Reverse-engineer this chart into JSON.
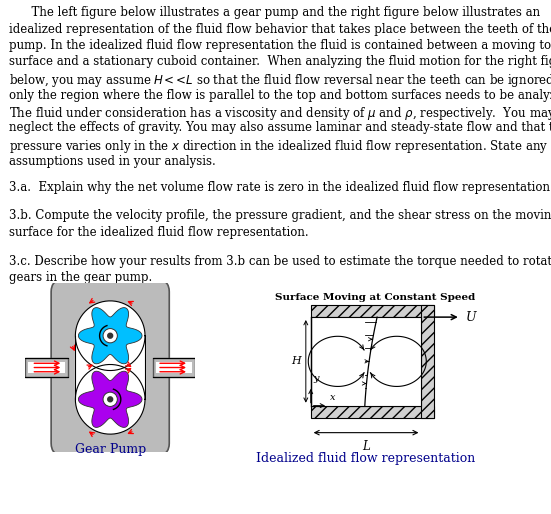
{
  "bg_color": "#ffffff",
  "text_color": "#000000",
  "gear_cyan": "#00bfff",
  "gear_purple": "#aa00ee",
  "gear_gray": "#bbbbbb",
  "arrow_red": "#ff0000",
  "label_color": "#00008b",
  "label_gear": "Gear Pump",
  "label_flow": "Idealized fluid flow representation",
  "surface_label": "Surface Moving at Constant Speed",
  "fontsize_body": 8.5,
  "fontsize_qa": 8.5,
  "fontsize_label": 9.0
}
